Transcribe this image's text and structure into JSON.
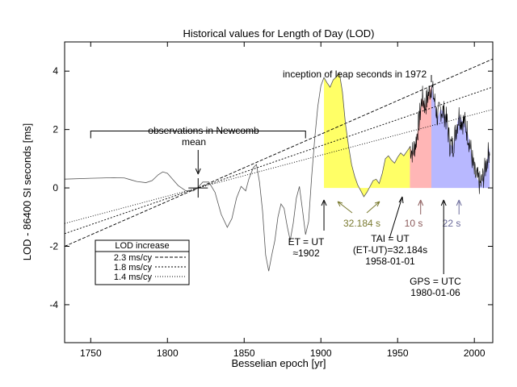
{
  "chart_data": {
    "type": "line",
    "title": "Historical values for Length of Day (LOD)",
    "xlabel": "Besselian epoch [yr]",
    "ylabel": "LOD - 86400 SI seconds [ms]",
    "xlim": [
      1733,
      2012
    ],
    "ylim": [
      -5.3,
      5.0
    ],
    "xticks": [
      1750,
      1800,
      1850,
      1900,
      1950,
      2000
    ],
    "yticks": [
      -4,
      -2,
      0,
      2,
      4
    ],
    "grid": false,
    "colors": {
      "lod_curve": "#555555",
      "measured_curve": "#000000",
      "yellow_fill": "#ffff66",
      "pink_fill": "#ffb6b6",
      "blue_fill": "#b8b8ff",
      "olive_text": "#7a7a30",
      "brown_text": "#8b5a5a",
      "purple_text": "#6a6a9a"
    },
    "series": [
      {
        "key": "lod",
        "points": [
          [
            1733,
            0.3
          ],
          [
            1750,
            0.33
          ],
          [
            1765,
            0.35
          ],
          [
            1772,
            0.34
          ],
          [
            1776,
            0.28
          ],
          [
            1780,
            0.22
          ],
          [
            1786,
            0.18
          ],
          [
            1790,
            0.25
          ],
          [
            1794,
            0.45
          ],
          [
            1797,
            0.55
          ],
          [
            1800,
            0.5
          ],
          [
            1803,
            0.32
          ],
          [
            1807,
            0.08
          ],
          [
            1812,
            -0.1
          ],
          [
            1817,
            -0.1
          ],
          [
            1820,
            0.02
          ],
          [
            1823,
            0.2
          ],
          [
            1827,
            0.2
          ],
          [
            1831,
            -0.15
          ],
          [
            1835,
            -0.9
          ],
          [
            1839,
            -1.35
          ],
          [
            1842,
            -1.05
          ],
          [
            1845,
            -0.35
          ],
          [
            1848,
            0.05
          ],
          [
            1851,
            -0.1
          ],
          [
            1853,
            0.3
          ],
          [
            1856,
            0.7
          ],
          [
            1858,
            0.8
          ],
          [
            1860,
            0.2
          ],
          [
            1862,
            -0.8
          ],
          [
            1864,
            -2.3
          ],
          [
            1866,
            -2.85
          ],
          [
            1868,
            -2.3
          ],
          [
            1870,
            -1.8
          ],
          [
            1872,
            -1.0
          ],
          [
            1874,
            -0.55
          ],
          [
            1876,
            -0.7
          ],
          [
            1878,
            -1.3
          ],
          [
            1880,
            -1.8
          ],
          [
            1882,
            -1.2
          ],
          [
            1884,
            -0.35
          ],
          [
            1886,
            0.05
          ],
          [
            1888,
            -0.75
          ],
          [
            1890,
            -1.6
          ],
          [
            1892,
            -1.15
          ],
          [
            1894,
            0.4
          ],
          [
            1896,
            1.7
          ],
          [
            1898,
            2.8
          ],
          [
            1900,
            3.5
          ],
          [
            1902,
            3.78
          ],
          [
            1904,
            3.6
          ],
          [
            1906,
            3.45
          ],
          [
            1908,
            3.7
          ],
          [
            1910,
            3.8
          ],
          [
            1912,
            3.95
          ],
          [
            1914,
            3.3
          ],
          [
            1916,
            2.2
          ],
          [
            1918,
            1.45
          ],
          [
            1920,
            0.8
          ],
          [
            1922,
            0.4
          ],
          [
            1924,
            0.1
          ],
          [
            1926,
            -0.1
          ],
          [
            1928,
            -0.3
          ],
          [
            1930,
            -0.15
          ],
          [
            1932,
            0.05
          ],
          [
            1934,
            0.25
          ],
          [
            1936,
            0.3
          ],
          [
            1938,
            0.15
          ],
          [
            1940,
            0.5
          ],
          [
            1942,
            1.0
          ],
          [
            1944,
            1.1
          ],
          [
            1946,
            0.95
          ],
          [
            1948,
            0.85
          ],
          [
            1950,
            1.05
          ],
          [
            1952,
            1.2
          ],
          [
            1954,
            1.1
          ],
          [
            1956,
            1.25
          ],
          [
            1958,
            1.4
          ]
        ]
      },
      {
        "key": "measured",
        "points": [
          [
            1958,
            1.4
          ],
          [
            1960,
            1.2
          ],
          [
            1962,
            1.6
          ],
          [
            1964,
            2.3
          ],
          [
            1966,
            3.1
          ],
          [
            1968,
            2.8
          ],
          [
            1970,
            3.2
          ],
          [
            1972,
            3.5
          ],
          [
            1974,
            3.0
          ],
          [
            1976,
            2.4
          ],
          [
            1978,
            2.7
          ],
          [
            1980,
            2.6
          ],
          [
            1982,
            2.3
          ],
          [
            1984,
            1.5
          ],
          [
            1986,
            1.4
          ],
          [
            1988,
            2.0
          ],
          [
            1990,
            2.5
          ],
          [
            1992,
            2.3
          ],
          [
            1994,
            2.2
          ],
          [
            1996,
            1.8
          ],
          [
            1998,
            1.2
          ],
          [
            2000,
            0.5
          ],
          [
            2002,
            0.3
          ],
          [
            2004,
            0.1
          ],
          [
            2006,
            0.4
          ],
          [
            2008,
            0.9
          ],
          [
            2010,
            1.4
          ]
        ]
      }
    ],
    "trend_lines": [
      {
        "name": "2.3 ms/cy",
        "slope_ms_per_cy": 2.3,
        "anchor_x": 1820,
        "anchor_y": 0,
        "x_start": 1733,
        "x_end": 2012,
        "dash": "4,2"
      },
      {
        "name": "1.8 ms/cy",
        "slope_ms_per_cy": 1.8,
        "anchor_x": 1820,
        "anchor_y": 0,
        "x_start": 1733,
        "x_end": 2012,
        "dash": "2,2"
      },
      {
        "name": "1.4 ms/cy",
        "slope_ms_per_cy": 1.4,
        "anchor_x": 1820,
        "anchor_y": 0,
        "x_start": 1733,
        "x_end": 2012,
        "dash": "1,2"
      }
    ],
    "shaded_regions": [
      {
        "key": "yellow",
        "x_start": 1902,
        "x_end": 1958
      },
      {
        "key": "pink",
        "x_start": 1958,
        "x_end": 1972
      },
      {
        "key": "blue",
        "x_start": 1972,
        "x_end": 2010
      }
    ],
    "legend": {
      "title": "LOD increase",
      "placement": "bottom-left",
      "entries": [
        "2.3 ms/cy",
        "1.8 ms/cy",
        "1.4 ms/cy"
      ]
    },
    "annotations": {
      "newcomb": {
        "line1": "observations in Newcomb",
        "line2": "mean",
        "bracket_x_start": 1750,
        "bracket_x_end": 1890,
        "bracket_y": 1.95,
        "arrow_x": 1820
      },
      "leap": {
        "text": "inception of leap seconds in 1972",
        "x": 1972
      },
      "et_ut": {
        "line1": "ET = UT",
        "line2": "≈1902",
        "x": 1902
      },
      "s32": {
        "text": "32.184 s"
      },
      "tai": {
        "line1": "TAI = UT",
        "line2": "(ET-UT)=32.184s",
        "line3": "1958-01-01",
        "x": 1958
      },
      "s10": {
        "text": "10 s",
        "x": 1965
      },
      "s22": {
        "text": "22 s",
        "x": 1990
      },
      "gps": {
        "line1": "GPS = UTC",
        "line2": "1980-01-06",
        "x": 1980
      }
    }
  }
}
